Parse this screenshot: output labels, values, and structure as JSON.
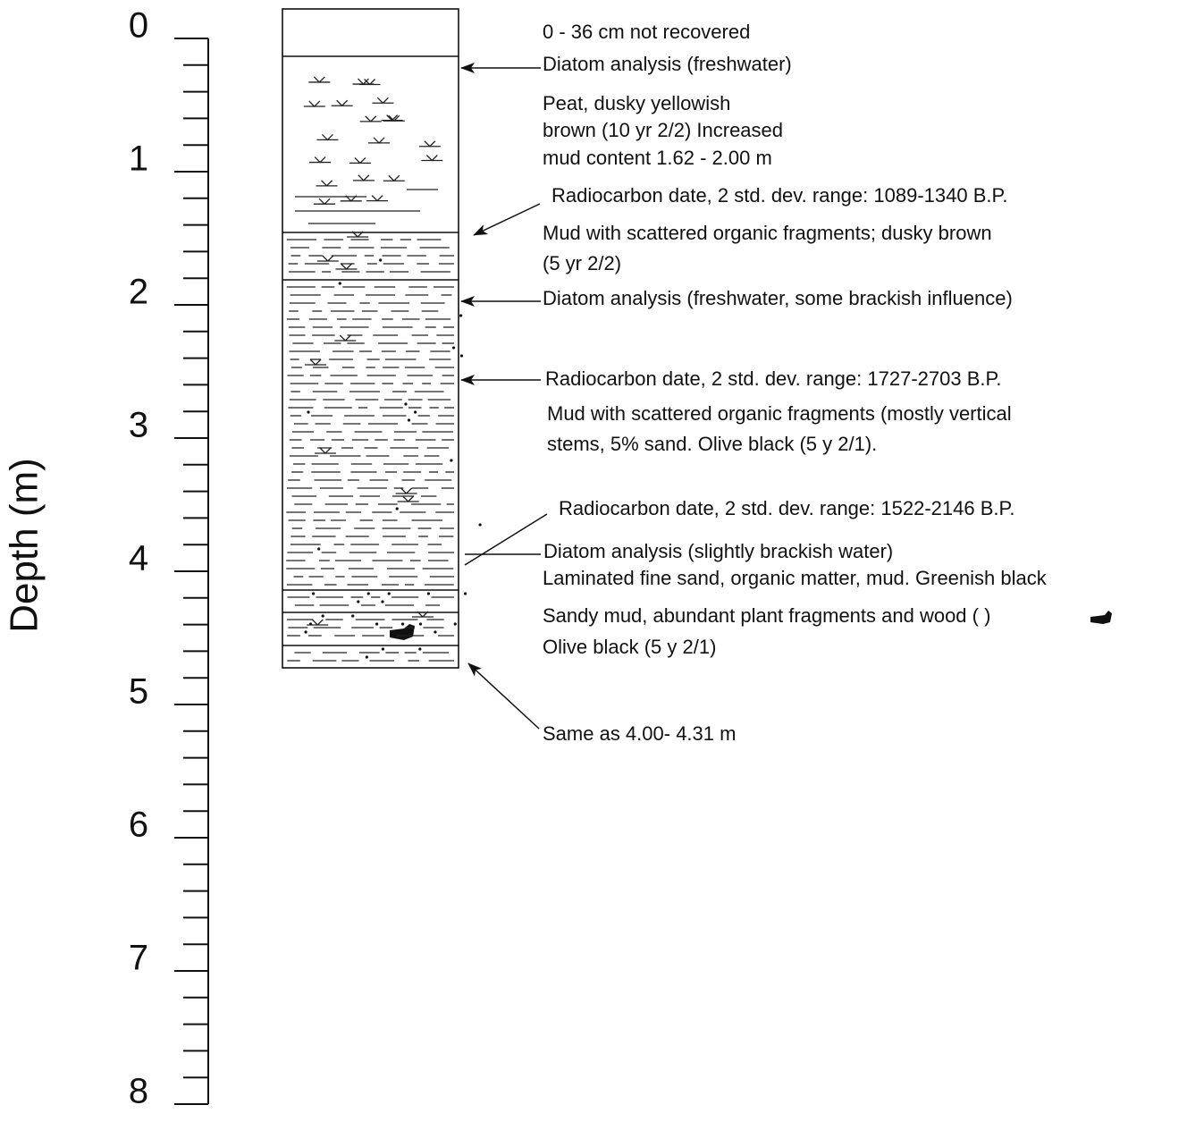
{
  "axis": {
    "title": "Depth (m)",
    "ticks": [
      0,
      1,
      2,
      3,
      4,
      5,
      6,
      7,
      8
    ]
  },
  "annotations": [
    {
      "lines": [
        "0 - 36 cm not recovered"
      ]
    },
    {
      "lines": [
        "Diatom analysis (freshwater)"
      ]
    },
    {
      "lines": [
        "Peat,  dusky yellowish",
        "brown (10 yr 2/2) Increased",
        "mud content 1.62 - 2.00 m"
      ]
    },
    {
      "lines": [
        "Radiocarbon date, 2 std. dev. range: 1089-1340 B.P."
      ]
    },
    {
      "lines": [
        "Mud with scattered organic fragments; dusky brown",
        "(5 yr 2/2)"
      ]
    },
    {
      "lines": [
        "Diatom analysis (freshwater, some brackish influence)"
      ]
    },
    {
      "lines": [
        "Radiocarbon date, 2 std. dev. range: 1727-2703 B.P."
      ]
    },
    {
      "lines": [
        "Mud with scattered organic fragments (mostly vertical",
        "stems, 5% sand. Olive black (5 y 2/1)."
      ]
    },
    {
      "lines": [
        "Radiocarbon date, 2 std. dev. range: 1522-2146 B.P."
      ]
    },
    {
      "lines": [
        "Diatom analysis (slightly brackish water)"
      ]
    },
    {
      "lines": [
        "Laminated fine sand, organic matter, mud.  Greenish black"
      ]
    },
    {
      "lines": [
        "Sandy mud, abundant plant fragments and wood (      )",
        "Olive black (5 y 2/1)"
      ]
    },
    {
      "lines": [
        "Same as 4.00- 4.31 m"
      ]
    }
  ]
}
